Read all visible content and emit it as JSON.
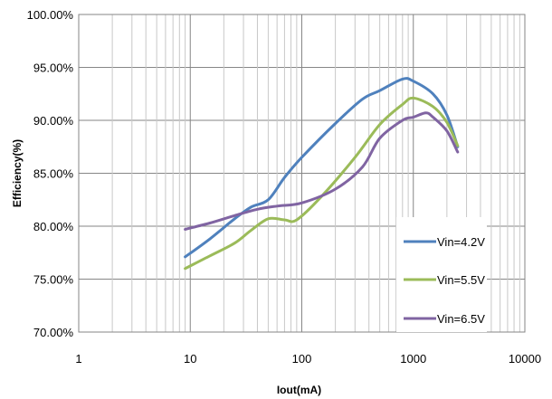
{
  "chart_data": {
    "type": "line",
    "xlabel": "Iout(mA)",
    "ylabel": "Efficiency(%)",
    "x_scale": "log",
    "xlim": [
      1,
      10000
    ],
    "ylim": [
      70,
      100
    ],
    "x_ticks": [
      {
        "value": 1,
        "label": "1"
      },
      {
        "value": 10,
        "label": "10"
      },
      {
        "value": 100,
        "label": "100"
      },
      {
        "value": 1000,
        "label": "1000"
      },
      {
        "value": 10000,
        "label": "10000"
      }
    ],
    "y_ticks": [
      {
        "value": 70,
        "label": "70.00%"
      },
      {
        "value": 75,
        "label": "75.00%"
      },
      {
        "value": 80,
        "label": "80.00%"
      },
      {
        "value": 85,
        "label": "85.00%"
      },
      {
        "value": 90,
        "label": "90.00%"
      },
      {
        "value": 95,
        "label": "95.00%"
      },
      {
        "value": 100,
        "label": "100.00%"
      }
    ],
    "grid": {
      "major": true,
      "minor_x": true
    },
    "legend_position": "bottom-right-inside",
    "series": [
      {
        "name": "Vin=4.2V",
        "color": "#4F81BD",
        "points": [
          [
            9,
            77.1
          ],
          [
            15,
            78.8
          ],
          [
            25,
            80.7
          ],
          [
            35,
            81.8
          ],
          [
            50,
            82.5
          ],
          [
            70,
            84.6
          ],
          [
            100,
            86.5
          ],
          [
            200,
            89.7
          ],
          [
            350,
            92.0
          ],
          [
            500,
            92.8
          ],
          [
            800,
            93.9
          ],
          [
            1000,
            93.7
          ],
          [
            1500,
            92.5
          ],
          [
            2000,
            90.5
          ],
          [
            2500,
            87.5
          ]
        ]
      },
      {
        "name": "Vin=5.5V",
        "color": "#9BBB59",
        "points": [
          [
            9,
            76.0
          ],
          [
            15,
            77.2
          ],
          [
            25,
            78.4
          ],
          [
            35,
            79.6
          ],
          [
            50,
            80.7
          ],
          [
            70,
            80.6
          ],
          [
            90,
            80.6
          ],
          [
            150,
            82.8
          ],
          [
            300,
            86.5
          ],
          [
            500,
            89.6
          ],
          [
            800,
            91.5
          ],
          [
            1000,
            92.1
          ],
          [
            1500,
            91.3
          ],
          [
            2000,
            89.8
          ],
          [
            2500,
            87.6
          ]
        ]
      },
      {
        "name": "Vin=6.5V",
        "color": "#8064A2",
        "points": [
          [
            9,
            79.7
          ],
          [
            15,
            80.3
          ],
          [
            25,
            81.0
          ],
          [
            40,
            81.6
          ],
          [
            60,
            81.9
          ],
          [
            100,
            82.2
          ],
          [
            200,
            83.5
          ],
          [
            350,
            85.6
          ],
          [
            500,
            88.3
          ],
          [
            800,
            90.0
          ],
          [
            1000,
            90.3
          ],
          [
            1300,
            90.7
          ],
          [
            1500,
            90.3
          ],
          [
            2000,
            89.0
          ],
          [
            2500,
            87.0
          ]
        ]
      }
    ]
  }
}
